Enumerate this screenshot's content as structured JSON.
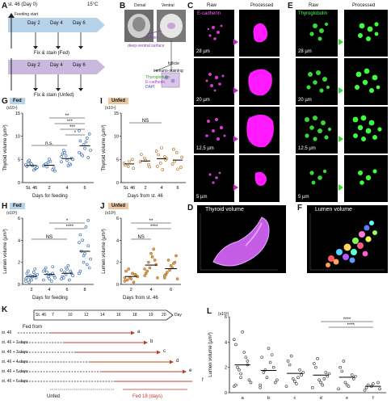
{
  "panels": {
    "A": "A",
    "B": "B",
    "C": "C",
    "D": "D",
    "E": "E",
    "F": "F",
    "G": "G",
    "H": "H",
    "I": "I",
    "J": "J",
    "K": "K",
    "L": "L"
  },
  "panelA": {
    "st_label": "st. 46 (Day 0)",
    "temp": "15°C",
    "feeding_start": "Feeding start",
    "fed_days": [
      "Day 2",
      "Day 4",
      "Day 6"
    ],
    "fix_fed": "Fix & stain (Fed)",
    "unfed_days": [
      "Day 2",
      "Day 4",
      "Day 6"
    ],
    "fix_unfed": "Fix & stain (Unfed)"
  },
  "panelB": {
    "dorsal": "Dorsal",
    "ventral": "Ventral",
    "thyroid": "thyroid",
    "deep": "deep-ventral surface",
    "follicle": "follicle",
    "immuno": "immuno-staining",
    "stains": [
      "Thyroglobulin",
      "E-cadherin",
      "DAPI"
    ]
  },
  "panelC": {
    "raw": "Raw",
    "processed": "Processed",
    "stain": "E-cadherin",
    "depths": [
      "28 µm",
      "20 µm",
      "12.5 µm",
      "5 µm"
    ]
  },
  "panelE": {
    "raw": "Raw",
    "processed": "Processed",
    "stain": "Thyroglobulin",
    "depths": [
      "28 µm",
      "20 µm",
      "12.5 µm",
      "5 µm"
    ]
  },
  "panelD": {
    "title": "Thyroid volume"
  },
  "panelF": {
    "title": "Lumen volume"
  },
  "panelG": {
    "ribbon": "Fed",
    "exp": "(x10⁴)",
    "ylabel": "Thyroid volume (µm³)",
    "xlabel": "Days for feeding",
    "yticks": [
      "0",
      "5",
      "10",
      "15"
    ],
    "ns": "n.s.",
    "sig": [
      "**",
      "***",
      "***",
      "*"
    ]
  },
  "panelI": {
    "ribbon": "Unfed",
    "exp": "(x10⁴)",
    "ylabel": "Thyroid volume (µm³)",
    "xlabel": "Days from st. 46",
    "yticks": [
      "0",
      "5",
      "10",
      "15"
    ],
    "ns": "NS"
  },
  "panelH": {
    "ribbon": "Fed",
    "exp": "(x10³)",
    "ylabel": "Lumen volume (µm³)",
    "xlabel": "Days for feeding",
    "yticks": [
      "0",
      "2",
      "4",
      "6"
    ],
    "ns": "NS",
    "sig": [
      "*",
      "****"
    ]
  },
  "panelJ": {
    "ribbon": "Unfed",
    "exp": "(x10³)",
    "ylabel": "Lumen volume (µm³)",
    "xlabel": "Days from st. 46",
    "yticks": [
      "0",
      "2",
      "4",
      "6"
    ],
    "ns": "NS",
    "sig": [
      "**",
      "****"
    ]
  },
  "panelK": {
    "axis": [
      "St. 46",
      "7",
      "10",
      "12",
      "14",
      "16",
      "18",
      "19",
      "20"
    ],
    "axis_label": "Day",
    "fed_from": "Fed from",
    "rows": [
      {
        "label": "st. 46",
        "letter": "a"
      },
      {
        "label": "st. 46 + 2 days",
        "letter": "b"
      },
      {
        "label": "st. 46 + 3 days",
        "letter": "c"
      },
      {
        "label": "st. 46 + 4 days",
        "letter": "d"
      },
      {
        "label": "st. 46 + 5 days",
        "letter": "e"
      },
      {
        "label": "st. 46 + 6 days",
        "letter": "f"
      }
    ],
    "unfed": "Unfed",
    "fed18": "Fed 18 (days)"
  },
  "panelL": {
    "exp": "(x10³)",
    "ylabel": "Lumen volume (µm³)",
    "yticks": [
      "0",
      "2",
      "4",
      "6"
    ],
    "sig": [
      "****",
      "****"
    ]
  },
  "chart_data": [
    {
      "type": "scatter",
      "panel": "G",
      "categories": [
        "St. 46",
        "2",
        "4",
        "6"
      ],
      "series": [
        {
          "values": [
            [
              3.8,
              4.2,
              2.9,
              3.5,
              4.0,
              3.1,
              4.5,
              3.6,
              3.3,
              4.8,
              2.7,
              3.9
            ],
            [
              3.6,
              4.4,
              2.8,
              3.9,
              5.1,
              3.2,
              4.0,
              4.6,
              2.5,
              3.4
            ],
            [
              4.5,
              5.8,
              3.9,
              6.2,
              4.8,
              5.3,
              7.0,
              3.6,
              5.0,
              6.5,
              4.1,
              5.6
            ],
            [
              6.5,
              8.2,
              5.4,
              9.0,
              7.4,
              10.5,
              6.1,
              8.8,
              7.0,
              5.8,
              9.6,
              11.2
            ]
          ]
        }
      ],
      "ylim": [
        0,
        15
      ],
      "xlabel": "Days for feeding",
      "ylabel": "Thyroid volume (µm³)"
    },
    {
      "type": "scatter",
      "panel": "I",
      "categories": [
        "St. 46",
        "2",
        "4",
        "6"
      ],
      "series": [
        {
          "values": [
            [
              4.2,
              3.5,
              5.0,
              3.8,
              4.6,
              3.1
            ],
            [
              4.5,
              5.3,
              3.9,
              6.1,
              4.8,
              3.4
            ],
            [
              6.8,
              4.2,
              5.6,
              3.5,
              7.5,
              4.9,
              6.0,
              2.8,
              5.2
            ],
            [
              4.0,
              6.5,
              3.3,
              7.2,
              2.9,
              5.5,
              4.6
            ]
          ]
        }
      ],
      "ylim": [
        0,
        15
      ],
      "xlabel": "Days from st. 46",
      "ylabel": "Thyroid volume (µm³)"
    },
    {
      "type": "scatter",
      "panel": "H",
      "categories": [
        "2",
        "4",
        "6",
        "8"
      ],
      "series": [
        {
          "values": [
            [
              0.3,
              0.5,
              0.8,
              1.0,
              0.4,
              0.6,
              1.2,
              0.7,
              0.9,
              0.2,
              1.1,
              0.5,
              0.8,
              1.4,
              0.6
            ],
            [
              0.4,
              0.7,
              1.0,
              1.3,
              0.5,
              0.8,
              1.5,
              0.9,
              0.6,
              1.1,
              0.3,
              1.2,
              0.7,
              1.6
            ],
            [
              0.5,
              0.9,
              1.2,
              0.7,
              1.4,
              1.0,
              0.6,
              1.7,
              0.8,
              1.1,
              0.4,
              1.3,
              1.5
            ],
            [
              1.0,
              2.0,
              3.5,
              4.5,
              2.8,
              1.5,
              3.0,
              5.2,
              2.3,
              4.0,
              1.8,
              3.8,
              2.6,
              5.8,
              1.2
            ]
          ]
        }
      ],
      "ylim": [
        0,
        6
      ],
      "xlabel": "Days for feeding",
      "ylabel": "Lumen volume (µm³)"
    },
    {
      "type": "scatter",
      "panel": "J",
      "categories": [
        "2",
        "4",
        "6"
      ],
      "series": [
        {
          "values": [
            [
              0.3,
              0.6,
              0.9,
              1.2,
              0.5,
              0.8,
              0.4,
              1.0,
              0.7,
              1.4,
              0.2,
              0.6
            ],
            [
              0.8,
              1.5,
              2.2,
              1.0,
              2.8,
              1.8,
              1.2,
              2.5,
              0.6,
              2.0,
              3.2,
              1.4
            ],
            [
              0.6,
              1.3,
              2.0,
              0.9,
              1.7,
              2.6,
              1.1,
              1.5,
              0.5,
              2.2,
              1.9,
              0.8
            ]
          ]
        }
      ],
      "ylim": [
        0,
        6
      ],
      "xlabel": "Days from st. 46",
      "ylabel": "Lumen volume (µm³)"
    },
    {
      "type": "scatter",
      "panel": "L",
      "categories": [
        "a",
        "b",
        "c",
        "d",
        "e",
        "f"
      ],
      "series": [
        {
          "values": [
            [
              0.5,
              1.5,
              2.5,
              3.8,
              4.8,
              1.0,
              2.0,
              3.2,
              0.8,
              1.8,
              2.8,
              4.2,
              1.2,
              2.2,
              0.6
            ],
            [
              0.4,
              1.2,
              2.0,
              2.8,
              3.5,
              0.8,
              1.6,
              2.4,
              1.0,
              1.8,
              3.0,
              0.6
            ],
            [
              0.5,
              1.1,
              1.8,
              2.5,
              0.9,
              1.4,
              2.2,
              0.7,
              1.6,
              2.9,
              1.2
            ],
            [
              0.4,
              1.0,
              1.6,
              2.3,
              0.8,
              1.3,
              2.0,
              0.6,
              1.5,
              2.7,
              1.1
            ],
            [
              0.3,
              0.8,
              1.4,
              2.0,
              0.6,
              1.1,
              1.7,
              0.5,
              1.3,
              2.5
            ],
            [
              0.2,
              0.5,
              0.8,
              0.4,
              0.7,
              0.3,
              0.6
            ]
          ]
        }
      ],
      "ylim": [
        0,
        6
      ],
      "ylabel": "Lumen volume (µm³)"
    }
  ]
}
